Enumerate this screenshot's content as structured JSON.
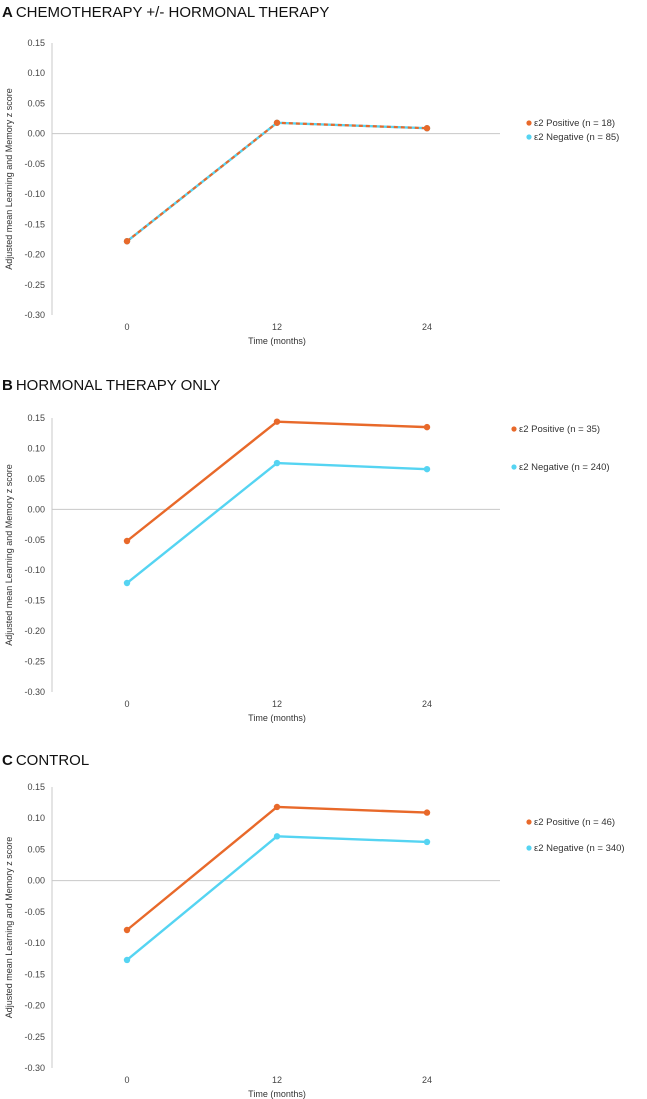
{
  "colors": {
    "positive": "#E8692A",
    "negative": "#55D4F2",
    "axis": "#c8c8c8"
  },
  "chart_data": [
    {
      "type": "line",
      "panel_letter": "A",
      "title": "CHEMOTHERAPY +/- HORMONAL THERAPY",
      "xlabel": "Time (months)",
      "ylabel": "Adjusted mean Learning and Memory z score",
      "x": [
        0,
        12,
        24
      ],
      "x_tick_labels": [
        "0",
        "12",
        "24"
      ],
      "ylim": [
        -0.3,
        0.15
      ],
      "y_ticks": [
        0.15,
        0.1,
        0.05,
        0.0,
        -0.05,
        -0.1,
        -0.15,
        -0.2,
        -0.25,
        -0.3
      ],
      "y_tick_labels": [
        "0.15",
        "0.10",
        "0.05",
        "0.00",
        "-0.05",
        "-0.10",
        "-0.15",
        "-0.20",
        "-0.25",
        "-0.30"
      ],
      "grid": false,
      "legend_position": "right",
      "series": [
        {
          "name": "ε2 Positive (n = 18)",
          "color_key": "positive",
          "values": [
            -0.178,
            0.018,
            0.009
          ],
          "dashed": true
        },
        {
          "name": "ε2 Negative (n = 85)",
          "color_key": "negative",
          "values": [
            -0.178,
            0.018,
            0.009
          ],
          "dashed": false
        }
      ]
    },
    {
      "type": "line",
      "panel_letter": "B",
      "title": "HORMONAL THERAPY ONLY",
      "xlabel": "Time (months)",
      "ylabel": "Adjusted mean Learning and Memory z score",
      "x": [
        0,
        12,
        24
      ],
      "x_tick_labels": [
        "0",
        "12",
        "24"
      ],
      "ylim": [
        -0.3,
        0.15
      ],
      "y_ticks": [
        0.15,
        0.1,
        0.05,
        0.0,
        -0.05,
        -0.1,
        -0.15,
        -0.2,
        -0.25,
        -0.3
      ],
      "y_tick_labels": [
        "0.15",
        "0.10",
        "0.05",
        "0.00",
        "-0.05",
        "-0.10",
        "-0.15",
        "-0.20",
        "-0.25",
        "-0.30"
      ],
      "grid": false,
      "legend_position": "right",
      "series": [
        {
          "name": "ε2 Positive (n = 35)",
          "color_key": "positive",
          "values": [
            -0.052,
            0.144,
            0.135
          ],
          "dashed": false
        },
        {
          "name": "ε2 Negative (n = 240)",
          "color_key": "negative",
          "values": [
            -0.121,
            0.076,
            0.066
          ],
          "dashed": false
        }
      ]
    },
    {
      "type": "line",
      "panel_letter": "C",
      "title": "CONTROL",
      "xlabel": "Time (months)",
      "ylabel": "Adjusted mean Learning and Memory z score",
      "x": [
        0,
        12,
        24
      ],
      "x_tick_labels": [
        "0",
        "12",
        "24"
      ],
      "ylim": [
        -0.3,
        0.15
      ],
      "y_ticks": [
        0.15,
        0.1,
        0.05,
        0.0,
        -0.05,
        -0.1,
        -0.15,
        -0.2,
        -0.25,
        -0.3
      ],
      "y_tick_labels": [
        "0.15",
        "0.10",
        "0.05",
        "0.00",
        "-0.05",
        "-0.10",
        "-0.15",
        "-0.20",
        "-0.25",
        "-0.30"
      ],
      "grid": false,
      "legend_position": "right",
      "series": [
        {
          "name": "ε2 Positive (n = 46)",
          "color_key": "positive",
          "values": [
            -0.079,
            0.118,
            0.109
          ],
          "dashed": false
        },
        {
          "name": "ε2 Negative (n = 340)",
          "color_key": "negative",
          "values": [
            -0.127,
            0.071,
            0.062
          ],
          "dashed": false
        }
      ]
    }
  ]
}
